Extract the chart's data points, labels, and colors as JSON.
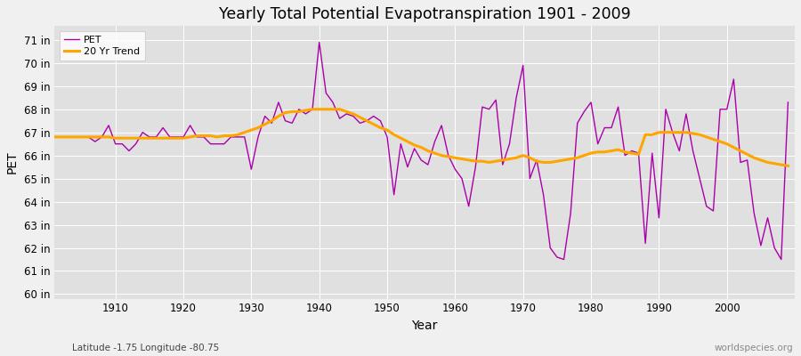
{
  "title": "Yearly Total Potential Evapotranspiration 1901 - 2009",
  "xlabel": "Year",
  "ylabel": "PET",
  "bottom_left_label": "Latitude -1.75 Longitude -80.75",
  "bottom_right_label": "worldspecies.org",
  "background_color": "#f0f0f0",
  "plot_bg_color": "#e0e0e0",
  "grid_color": "#ffffff",
  "pet_color": "#aa00aa",
  "trend_color": "#ffa500",
  "ylim": [
    59.8,
    71.6
  ],
  "yticks": [
    60,
    61,
    62,
    63,
    64,
    65,
    66,
    67,
    68,
    69,
    70,
    71
  ],
  "ytick_labels": [
    "60 in",
    "61 in",
    "62 in",
    "63 in",
    "64 in",
    "65 in",
    "66 in",
    "67 in",
    "68 in",
    "69 in",
    "70 in",
    "71 in"
  ],
  "xlim": [
    1901,
    2010
  ],
  "xticks": [
    1910,
    1920,
    1930,
    1940,
    1950,
    1960,
    1970,
    1980,
    1990,
    2000
  ],
  "years": [
    1901,
    1902,
    1903,
    1904,
    1905,
    1906,
    1907,
    1908,
    1909,
    1910,
    1911,
    1912,
    1913,
    1914,
    1915,
    1916,
    1917,
    1918,
    1919,
    1920,
    1921,
    1922,
    1923,
    1924,
    1925,
    1926,
    1927,
    1928,
    1929,
    1930,
    1931,
    1932,
    1933,
    1934,
    1935,
    1936,
    1937,
    1938,
    1939,
    1940,
    1941,
    1942,
    1943,
    1944,
    1945,
    1946,
    1947,
    1948,
    1949,
    1950,
    1951,
    1952,
    1953,
    1954,
    1955,
    1956,
    1957,
    1958,
    1959,
    1960,
    1961,
    1962,
    1963,
    1964,
    1965,
    1966,
    1967,
    1968,
    1969,
    1970,
    1971,
    1972,
    1973,
    1974,
    1975,
    1976,
    1977,
    1978,
    1979,
    1980,
    1981,
    1982,
    1983,
    1984,
    1985,
    1986,
    1987,
    1988,
    1989,
    1990,
    1991,
    1992,
    1993,
    1994,
    1995,
    1996,
    1997,
    1998,
    1999,
    2000,
    2001,
    2002,
    2003,
    2004,
    2005,
    2006,
    2007,
    2008,
    2009
  ],
  "pet_values": [
    66.8,
    66.8,
    66.8,
    66.8,
    66.8,
    66.8,
    66.6,
    66.8,
    67.3,
    66.5,
    66.5,
    66.2,
    66.5,
    67.0,
    66.8,
    66.8,
    67.2,
    66.8,
    66.8,
    66.8,
    67.3,
    66.8,
    66.8,
    66.5,
    66.5,
    66.5,
    66.8,
    66.8,
    66.8,
    65.4,
    66.8,
    67.7,
    67.4,
    68.3,
    67.5,
    67.4,
    68.0,
    67.8,
    68.0,
    70.9,
    68.7,
    68.3,
    67.6,
    67.8,
    67.7,
    67.4,
    67.5,
    67.7,
    67.5,
    66.8,
    64.3,
    66.5,
    65.5,
    66.3,
    65.8,
    65.6,
    66.6,
    67.3,
    66.0,
    65.4,
    65.0,
    63.8,
    65.5,
    68.1,
    68.0,
    68.4,
    65.6,
    66.5,
    68.5,
    69.9,
    65.0,
    65.8,
    64.3,
    62.0,
    61.6,
    61.5,
    63.5,
    67.4,
    67.9,
    68.3,
    66.5,
    67.2,
    67.2,
    68.1,
    66.0,
    66.2,
    66.1,
    62.2,
    66.1,
    63.3,
    68.0,
    67.0,
    66.2,
    67.8,
    66.2,
    65.0,
    63.8,
    63.6,
    68.0,
    68.0,
    69.3,
    65.7,
    65.8,
    63.5,
    62.1,
    63.3,
    62.0,
    61.5,
    68.3
  ],
  "trend_years": [
    1901,
    1902,
    1903,
    1904,
    1905,
    1906,
    1907,
    1908,
    1909,
    1910,
    1911,
    1912,
    1913,
    1914,
    1915,
    1916,
    1917,
    1918,
    1919,
    1920,
    1921,
    1922,
    1923,
    1924,
    1925,
    1926,
    1927,
    1928,
    1929,
    1930,
    1931,
    1932,
    1933,
    1934,
    1935,
    1936,
    1937,
    1938,
    1939,
    1940,
    1941,
    1942,
    1943,
    1944,
    1945,
    1946,
    1947,
    1948,
    1949,
    1950,
    1951,
    1952,
    1953,
    1954,
    1955,
    1956,
    1957,
    1958,
    1959,
    1960,
    1961,
    1962,
    1963,
    1964,
    1965,
    1966,
    1967,
    1968,
    1969,
    1970,
    1971,
    1972,
    1973,
    1974,
    1975,
    1976,
    1977,
    1978,
    1979,
    1980,
    1981,
    1982,
    1983,
    1984,
    1985,
    1986,
    1987,
    1988,
    1989,
    1990,
    1991,
    1992,
    1993,
    1994,
    1995,
    1996,
    1997,
    1998,
    1999,
    2000,
    2001,
    2002,
    2003,
    2004,
    2005,
    2006,
    2007,
    2008,
    2009
  ],
  "trend_values": [
    66.8,
    66.8,
    66.8,
    66.8,
    66.8,
    66.8,
    66.8,
    66.8,
    66.8,
    66.75,
    66.75,
    66.75,
    66.75,
    66.75,
    66.75,
    66.75,
    66.75,
    66.75,
    66.75,
    66.75,
    66.8,
    66.85,
    66.85,
    66.85,
    66.8,
    66.85,
    66.85,
    66.9,
    67.0,
    67.1,
    67.2,
    67.35,
    67.5,
    67.7,
    67.85,
    67.9,
    67.9,
    67.95,
    68.0,
    68.0,
    68.0,
    68.0,
    68.0,
    67.9,
    67.8,
    67.65,
    67.5,
    67.35,
    67.2,
    67.1,
    66.9,
    66.75,
    66.6,
    66.45,
    66.35,
    66.2,
    66.1,
    66.0,
    65.95,
    65.9,
    65.85,
    65.8,
    65.75,
    65.75,
    65.7,
    65.75,
    65.8,
    65.85,
    65.9,
    66.0,
    65.9,
    65.75,
    65.7,
    65.7,
    65.75,
    65.8,
    65.85,
    65.9,
    66.0,
    66.1,
    66.15,
    66.15,
    66.2,
    66.25,
    66.15,
    66.1,
    66.05,
    66.9,
    66.9,
    67.0,
    67.0,
    67.0,
    67.0,
    67.0,
    66.95,
    66.9,
    66.8,
    66.7,
    66.6,
    66.5,
    66.35,
    66.2,
    66.05,
    65.9,
    65.8,
    65.7,
    65.65,
    65.6,
    65.55
  ]
}
